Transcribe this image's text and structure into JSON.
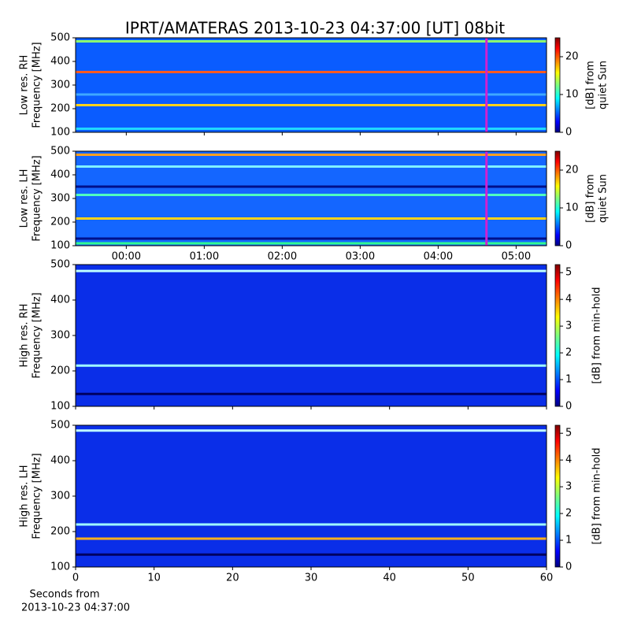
{
  "figure_title": "IPRT/AMATERAS 2013-10-23 04:37:00 [UT]   08bit",
  "xlabel": [
    "Seconds from",
    "2013-10-23 04:37:00"
  ],
  "chart_data": [
    {
      "type": "spectrogram",
      "ylabel": [
        "Low res. RH",
        "Frequency [MHz]"
      ],
      "ylim": [
        100,
        500
      ],
      "yticks": [
        100,
        200,
        300,
        400,
        500
      ],
      "xlim": [
        -0.65,
        5.39
      ],
      "xticks": [
        0,
        1,
        2,
        3,
        4,
        5
      ],
      "show_xtick_labels": false,
      "background": "#0a5cff",
      "marker_x": 4.62,
      "marker_color": "#d020d0",
      "bands": [
        {
          "freq": 485,
          "color": "#8cff70"
        },
        {
          "freq": 355,
          "color": "#ff5a20"
        },
        {
          "freq": 260,
          "color": "#3fa8ff"
        },
        {
          "freq": 215,
          "color": "#ffd21a"
        },
        {
          "freq": 115,
          "color": "#20d8ff"
        }
      ],
      "colorbar": {
        "label": [
          "[dB] from",
          "quiet Sun"
        ],
        "lim": [
          0,
          25
        ],
        "ticks": [
          0,
          10,
          20
        ]
      }
    },
    {
      "type": "spectrogram",
      "ylabel": [
        "Low res. LH",
        "Frequency [MHz]"
      ],
      "ylim": [
        100,
        500
      ],
      "yticks": [
        100,
        200,
        300,
        400,
        500
      ],
      "xlim": [
        -0.65,
        5.39
      ],
      "xticks": [
        {
          "value": 0,
          "label": "00:00"
        },
        {
          "value": 1,
          "label": "01:00"
        },
        {
          "value": 2,
          "label": "02:00"
        },
        {
          "value": 3,
          "label": "03:00"
        },
        {
          "value": 4,
          "label": "04:00"
        },
        {
          "value": 5,
          "label": "05:00"
        }
      ],
      "show_xtick_labels": true,
      "background": "#1466ff",
      "marker_x": 4.62,
      "marker_color": "#d020d0",
      "bands": [
        {
          "freq": 485,
          "color": "#ffa020"
        },
        {
          "freq": 435,
          "color": "#80f0ff"
        },
        {
          "freq": 350,
          "color": "#00108a"
        },
        {
          "freq": 315,
          "color": "#50ffc0"
        },
        {
          "freq": 215,
          "color": "#ffd21a"
        },
        {
          "freq": 130,
          "color": "#00108a"
        },
        {
          "freq": 110,
          "color": "#30ff90"
        }
      ],
      "colorbar": {
        "label": [
          "[dB] from",
          "quiet Sun"
        ],
        "lim": [
          0,
          25
        ],
        "ticks": [
          0,
          10,
          20
        ]
      }
    },
    {
      "type": "spectrogram",
      "ylabel": [
        "High res. RH",
        "Frequency [MHz]"
      ],
      "ylim": [
        100,
        500
      ],
      "yticks": [
        100,
        200,
        300,
        400,
        500
      ],
      "xlim": [
        0,
        60
      ],
      "xticks": [
        0,
        10,
        20,
        30,
        40,
        50,
        60
      ],
      "show_xtick_labels": false,
      "background": "#0a2ee8",
      "bands": [
        {
          "freq": 482,
          "color": "#c0ffff"
        },
        {
          "freq": 215,
          "color": "#a0ffff"
        },
        {
          "freq": 135,
          "color": "#000060"
        }
      ],
      "colorbar": {
        "label": [
          "[dB] from min-hold"
        ],
        "lim": [
          0,
          5.3
        ],
        "ticks": [
          0,
          1,
          2,
          3,
          4,
          5
        ]
      }
    },
    {
      "type": "spectrogram",
      "ylabel": [
        "High res. LH",
        "Frequency [MHz]"
      ],
      "ylim": [
        100,
        500
      ],
      "yticks": [
        100,
        200,
        300,
        400,
        500
      ],
      "xlim": [
        0,
        60
      ],
      "xticks": [
        0,
        10,
        20,
        30,
        40,
        50,
        60
      ],
      "show_xtick_labels": true,
      "background": "#0a2ee8",
      "bands": [
        {
          "freq": 485,
          "color": "#c0ffff"
        },
        {
          "freq": 220,
          "color": "#a0ffff"
        },
        {
          "freq": 180,
          "color": "#ffb020"
        },
        {
          "freq": 135,
          "color": "#000060"
        }
      ],
      "colorbar": {
        "label": [
          "[dB] from min-hold"
        ],
        "lim": [
          0,
          5.3
        ],
        "ticks": [
          0,
          1,
          2,
          3,
          4,
          5
        ]
      }
    }
  ]
}
